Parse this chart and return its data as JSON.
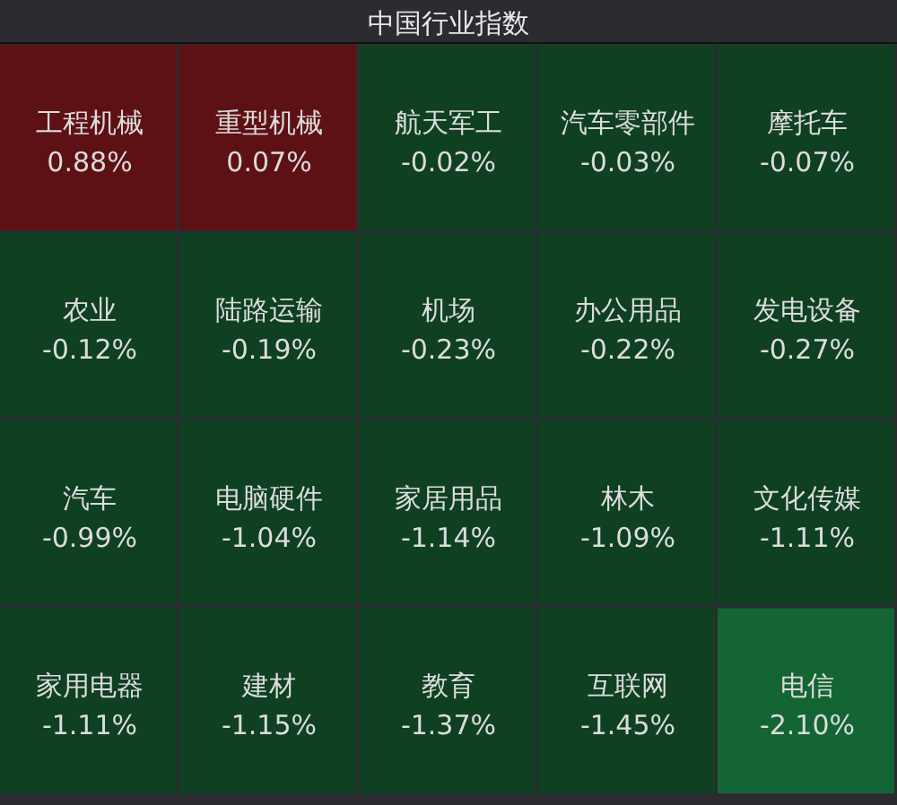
{
  "chart_data": {
    "type": "other",
    "title": "中国行业指数",
    "categories": [
      "工程机械",
      "重型机械",
      "航天军工",
      "汽车零部件",
      "摩托车",
      "农业",
      "陆路运输",
      "机场",
      "办公用品",
      "发电设备",
      "汽车",
      "电脑硬件",
      "家居用品",
      "林木",
      "文化传媒",
      "家用电器",
      "建材",
      "教育",
      "互联网",
      "电信"
    ],
    "values": [
      0.88,
      0.07,
      -0.02,
      -0.03,
      -0.07,
      -0.12,
      -0.19,
      -0.23,
      -0.22,
      -0.27,
      -0.99,
      -1.04,
      -1.14,
      -1.09,
      -1.11,
      -1.11,
      -1.15,
      -1.37,
      -1.45,
      -2.1
    ],
    "value_labels": [
      "0.88%",
      "0.07%",
      "-0.02%",
      "-0.03%",
      "-0.07%",
      "-0.12%",
      "-0.19%",
      "-0.23%",
      "-0.22%",
      "-0.27%",
      "-0.99%",
      "-1.04%",
      "-1.14%",
      "-1.09%",
      "-1.11%",
      "-1.11%",
      "-1.15%",
      "-1.37%",
      "-1.45%",
      "-2.10%"
    ]
  }
}
